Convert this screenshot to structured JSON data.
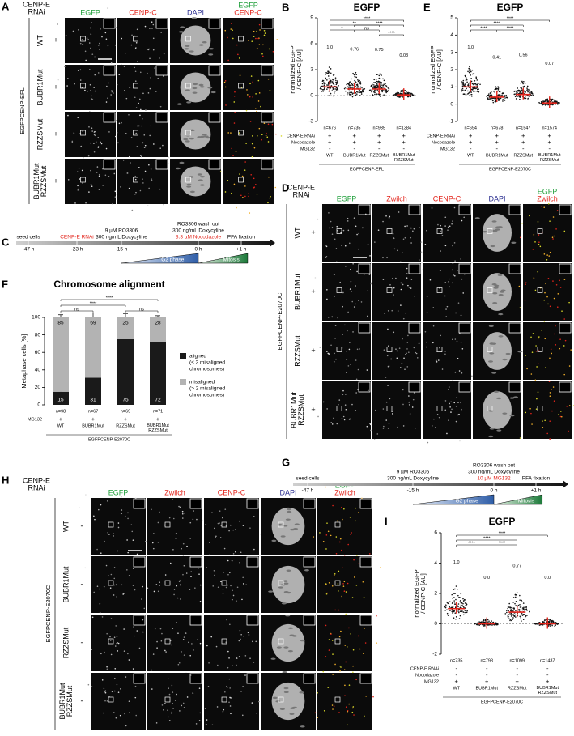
{
  "panels": {
    "A": {
      "label": "A",
      "rnai": [
        "CENP-E",
        "RNAi"
      ],
      "cell_line": "EGFPCENP-EFL",
      "channels": [
        {
          "name": "EGFP",
          "color": "#22a03c"
        },
        {
          "name": "CENP-C",
          "color": "#e3241b"
        },
        {
          "name": "DAPI",
          "color": "#2e3192"
        }
      ],
      "merge": [
        {
          "name": "EGFP",
          "color": "#22a03c"
        },
        {
          "name": "CENP-C",
          "color": "#e3241b"
        }
      ],
      "rows": [
        {
          "name": [
            "WT"
          ],
          "sign": "+"
        },
        {
          "name": [
            "BUBR1Mut"
          ],
          "sign": "+"
        },
        {
          "name": [
            "RZZSMut"
          ],
          "sign": "+"
        },
        {
          "name": [
            "BUBR1Mut",
            "RZZSMut"
          ],
          "sign": "+"
        }
      ]
    },
    "C": {
      "label": "C",
      "phases": [
        "G2 phase",
        "Mitosis"
      ],
      "events": [
        {
          "time": "-47 h",
          "text": [
            "seed cells"
          ]
        },
        {
          "time": "-23 h",
          "text": [],
          "treatment": "CENP-E RNAi"
        },
        {
          "time": "-15 h",
          "text": [
            "9 µM RO3306",
            "300 ng/mL Doxycyline"
          ]
        },
        {
          "time": "0 h",
          "text": [
            "RO3306 wash out",
            "300 ng/mL Doxycyline"
          ],
          "treatment": "3.3 µM Nocodazole"
        },
        {
          "time": "+1 h",
          "text": [
            "PFA fixation"
          ]
        }
      ]
    },
    "D": {
      "label": "D",
      "rnai": [
        "CENP-E",
        "RNAi"
      ],
      "cell_line": "EGFPCENP-E2070C",
      "channels": [
        {
          "name": "EGFP",
          "color": "#22a03c"
        },
        {
          "name": "Zwilch",
          "color": "#e3241b"
        },
        {
          "name": "CENP-C",
          "color": "#e3241b"
        },
        {
          "name": "DAPI",
          "color": "#2e3192"
        }
      ],
      "merge": [
        {
          "name": "EGFP",
          "color": "#22a03c"
        },
        {
          "name": "Zwilch",
          "color": "#e3241b"
        }
      ],
      "rows": [
        {
          "name": [
            "WT"
          ],
          "sign": "+"
        },
        {
          "name": [
            "BUBR1Mut"
          ],
          "sign": "+"
        },
        {
          "name": [
            "RZZSMut"
          ],
          "sign": "+"
        },
        {
          "name": [
            "BUBR1Mut",
            "RZZSMut"
          ],
          "sign": "+"
        }
      ]
    },
    "G": {
      "label": "G",
      "phases": [
        "G2 phase",
        "Mitosis"
      ],
      "events": [
        {
          "time": "-47 h",
          "text": [
            "seed cells"
          ]
        },
        {
          "time": "-15 h",
          "text": [
            "9 µM RO3306",
            "300 ng/mL Doxycyline"
          ]
        },
        {
          "time": "0 h",
          "text": [
            "RO3306 wash out",
            "300 ng/mL Doxycyline"
          ],
          "treatment": "10 µM MG132"
        },
        {
          "time": "+1 h",
          "text": [
            "PFA fixation"
          ]
        }
      ]
    },
    "H": {
      "label": "H",
      "rnai": [
        "CENP-E",
        "RNAi"
      ],
      "cell_line": "EGFPCENP-E2070C",
      "channels": [
        {
          "name": "EGFP",
          "color": "#22a03c"
        },
        {
          "name": "Zwilch",
          "color": "#e3241b"
        },
        {
          "name": "CENP-C",
          "color": "#e3241b"
        },
        {
          "name": "DAPI",
          "color": "#2e3192"
        }
      ],
      "merge": [
        {
          "name": "EGFP",
          "color": "#22a03c"
        },
        {
          "name": "Zwilch",
          "color": "#e3241b"
        }
      ],
      "rows": [
        {
          "name": [
            "WT"
          ],
          "sign": "-"
        },
        {
          "name": [
            "BUBR1Mut"
          ],
          "sign": "-"
        },
        {
          "name": [
            "RZZSMut"
          ],
          "sign": "-"
        },
        {
          "name": [
            "BUBR1Mut",
            "RZZSMut"
          ],
          "sign": "-"
        }
      ]
    }
  },
  "chart_data": [
    {
      "type": "dot",
      "label": "B",
      "title": "EGFP",
      "y_label": [
        "normalized EGFP",
        "/ CENP-C [AU]"
      ],
      "categories": [
        "WT",
        "BUBR1Mut",
        "RZZSMut",
        "BUBR1Mut RZZSMut"
      ],
      "values": [
        1.0,
        0.76,
        0.75,
        0.08
      ],
      "value_labels": [
        "1.0",
        "0.76",
        "0.75",
        "0.08"
      ],
      "n": [
        "n=676",
        "n=735",
        "n=935",
        "n=1384"
      ],
      "conditions": [
        {
          "name": "CENP-E RNAi",
          "signs": [
            "+",
            "+",
            "+",
            "+"
          ]
        },
        {
          "name": "Nocodazole",
          "signs": [
            "+",
            "+",
            "+",
            "+"
          ]
        },
        {
          "name": "MG132",
          "signs": [
            "-",
            "-",
            "-",
            "-"
          ]
        }
      ],
      "cell_line": "EGFPCENP-EFL",
      "significance": [
        "****",
        "**",
        "*",
        "ns",
        "****",
        "****"
      ],
      "ylim": [
        -3,
        9
      ],
      "yticks": [
        -3,
        0,
        3,
        6,
        9
      ],
      "color": "#e3241b"
    },
    {
      "type": "dot",
      "label": "E",
      "title": "EGFP",
      "y_label": [
        "normalized EGFP",
        "/ CENP-C [AU]"
      ],
      "categories": [
        "WT",
        "BUBR1Mut",
        "RZZSMut",
        "BUBR1Mut RZZSMut"
      ],
      "values": [
        1.0,
        0.41,
        0.56,
        0.07
      ],
      "value_labels": [
        "1.0",
        "0.41",
        "0.56",
        "0.07"
      ],
      "n": [
        "n=694",
        "n=678",
        "n=1547",
        "n=1574"
      ],
      "conditions": [
        {
          "name": "CENP-E RNAi",
          "signs": [
            "+",
            "+",
            "+",
            "+"
          ]
        },
        {
          "name": "Nocodazole",
          "signs": [
            "+",
            "+",
            "+",
            "+"
          ]
        },
        {
          "name": "MG132",
          "signs": [
            "-",
            "-",
            "-",
            "-"
          ]
        }
      ],
      "cell_line": "EGFPCENP-E2070C",
      "significance": [
        "****",
        "****",
        "****",
        "****"
      ],
      "ylim": [
        -1,
        5
      ],
      "yticks": [
        -1,
        0,
        1,
        2,
        3,
        4,
        5
      ],
      "color": "#e3241b"
    },
    {
      "type": "stacked_bar",
      "label": "F",
      "title": "Chromosome alignment",
      "y_label": "Metaphase cells [%]",
      "categories": [
        "WT",
        "BUBR1Mut",
        "RZZSMut",
        "BUBR1Mut RZZSMut"
      ],
      "series": [
        {
          "name": "aligned",
          "description": [
            "(≤ 2 misaligned",
            "chromosomes)"
          ],
          "color": "#1a1a1a",
          "values": [
            15,
            31,
            75,
            72
          ],
          "errors": [
            3,
            6,
            6,
            2
          ]
        },
        {
          "name": "misaligned",
          "description": [
            "(> 2 misaligned",
            "chromosomes)"
          ],
          "color": "#b3b3b3",
          "values": [
            85,
            69,
            25,
            28
          ],
          "errors": [
            3,
            5,
            4,
            2
          ]
        }
      ],
      "n": [
        "n=98",
        "n=67",
        "n=69",
        "n=71"
      ],
      "conditions": [
        {
          "name": "MG132",
          "signs": [
            "+",
            "+",
            "+",
            "+"
          ]
        }
      ],
      "cell_line": "EGFPCENP-E2070C",
      "significance": [
        "ns",
        "****",
        "****",
        "ns"
      ],
      "ylim": [
        0,
        100
      ],
      "yticks": [
        0,
        20,
        40,
        60,
        80,
        100
      ]
    },
    {
      "type": "dot",
      "label": "I",
      "title": "EGFP",
      "y_label": [
        "normalized EGFP",
        "/ CENP-C [AU]"
      ],
      "categories": [
        "WT",
        "BUBR1Mut",
        "RZZSMut",
        "BUBR1Mut RZZSMut"
      ],
      "values": [
        1.0,
        0.0,
        0.77,
        0.0
      ],
      "value_labels": [
        "1.0",
        "0.0",
        "0.77",
        "0.0"
      ],
      "n": [
        "n=735",
        "n=798",
        "n=1099",
        "n=1437"
      ],
      "conditions": [
        {
          "name": "CENP-E RNAi",
          "signs": [
            "-",
            "-",
            "-",
            "-"
          ]
        },
        {
          "name": "Nocodazole",
          "signs": [
            "-",
            "-",
            "-",
            "-"
          ]
        },
        {
          "name": "MG132",
          "signs": [
            "+",
            "+",
            "+",
            "+"
          ]
        }
      ],
      "cell_line": "EGFPCENP-E2070C",
      "significance": [
        "****",
        "****",
        "****",
        "****"
      ],
      "ylim": [
        -2,
        6
      ],
      "yticks": [
        -2,
        0,
        2,
        4,
        6
      ],
      "color": "#e3241b"
    }
  ]
}
